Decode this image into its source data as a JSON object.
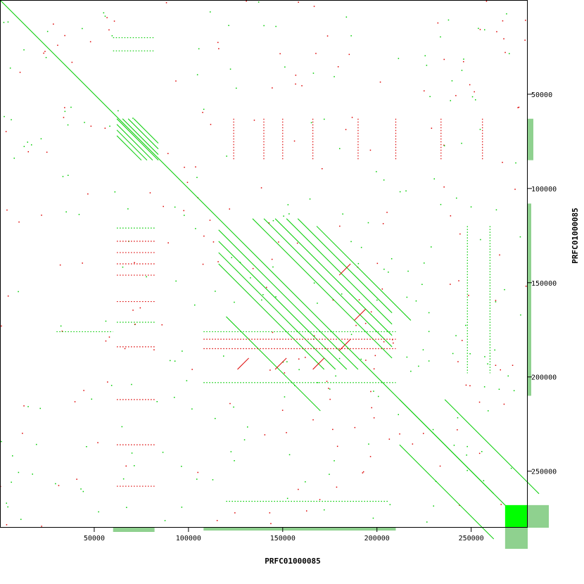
{
  "chart_data": {
    "type": "scatter",
    "subtype": "dot-plot self-alignment",
    "xlabel": "PRFC01000085",
    "ylabel": "PRFC01000085",
    "xlim": [
      0,
      280000
    ],
    "ylim": [
      0,
      280000
    ],
    "x_ticks": [
      {
        "value": 50000,
        "label": "50000"
      },
      {
        "value": 100000,
        "label": "100000"
      },
      {
        "value": 150000,
        "label": "150000"
      },
      {
        "value": 200000,
        "label": "200000"
      },
      {
        "value": 250000,
        "label": "250000"
      }
    ],
    "y_ticks": [
      {
        "value": 50000,
        "label": "50000"
      },
      {
        "value": 100000,
        "label": "100000"
      },
      {
        "value": 150000,
        "label": "150000"
      },
      {
        "value": 200000,
        "label": "200000"
      },
      {
        "value": 250000,
        "label": "250000"
      }
    ],
    "colors": {
      "forward": "#00cc00",
      "reverse": "#dd0000",
      "block": "#00ff00",
      "histogram": "#8fd18f",
      "axis": "#000000"
    },
    "main_diagonal": {
      "from": [
        0,
        0
      ],
      "to": [
        280000,
        280000
      ]
    },
    "dense_block": {
      "x": [
        268000,
        280000
      ],
      "y": [
        268000,
        280000
      ]
    },
    "forward_segments": [
      [
        [
          62000,
          63000
        ],
        [
          84000,
          85000
        ]
      ],
      [
        [
          65000,
          63000
        ],
        [
          84000,
          82000
        ]
      ],
      [
        [
          68000,
          63000
        ],
        [
          84000,
          79000
        ]
      ],
      [
        [
          71000,
          63000
        ],
        [
          84000,
          76000
        ]
      ],
      [
        [
          62000,
          66000
        ],
        [
          81000,
          85000
        ]
      ],
      [
        [
          62000,
          69000
        ],
        [
          78000,
          85000
        ]
      ],
      [
        [
          62000,
          72000
        ],
        [
          75000,
          85000
        ]
      ],
      [
        [
          134000,
          116000
        ],
        [
          208000,
          190000
        ]
      ],
      [
        [
          140000,
          116000
        ],
        [
          208000,
          184000
        ]
      ],
      [
        [
          146000,
          116000
        ],
        [
          208000,
          178000
        ]
      ],
      [
        [
          152000,
          116000
        ],
        [
          208000,
          172000
        ]
      ],
      [
        [
          158000,
          116000
        ],
        [
          208000,
          166000
        ]
      ],
      [
        [
          116000,
          122000
        ],
        [
          190000,
          196000
        ]
      ],
      [
        [
          116000,
          128000
        ],
        [
          184000,
          196000
        ]
      ],
      [
        [
          116000,
          134000
        ],
        [
          178000,
          196000
        ]
      ],
      [
        [
          116000,
          140000
        ],
        [
          172000,
          196000
        ]
      ],
      [
        [
          212000,
          212000
        ],
        [
          262000,
          262000
        ]
      ],
      [
        [
          236000,
          212000
        ],
        [
          286000,
          262000
        ]
      ],
      [
        [
          212000,
          236000
        ],
        [
          262000,
          286000
        ]
      ],
      [
        [
          120000,
          168000
        ],
        [
          170000,
          218000
        ]
      ],
      [
        [
          168000,
          120000
        ],
        [
          218000,
          170000
        ]
      ]
    ],
    "reverse_segments": [
      [
        [
          126000,
          196000
        ],
        [
          132000,
          190000
        ]
      ],
      [
        [
          146000,
          196000
        ],
        [
          152000,
          190000
        ]
      ],
      [
        [
          166000,
          196000
        ],
        [
          172000,
          190000
        ]
      ],
      [
        [
          180000,
          186000
        ],
        [
          186000,
          180000
        ]
      ],
      [
        [
          188000,
          170000
        ],
        [
          194000,
          164000
        ]
      ],
      [
        [
          180000,
          146000
        ],
        [
          186000,
          140000
        ]
      ]
    ],
    "forward_dotted": [
      [
        [
          60000,
          20000
        ],
        [
          82000,
          20000
        ]
      ],
      [
        [
          60000,
          27000
        ],
        [
          82000,
          27000
        ]
      ],
      [
        [
          62000,
          121000
        ],
        [
          82000,
          121000
        ]
      ],
      [
        [
          62000,
          171000
        ],
        [
          82000,
          171000
        ]
      ],
      [
        [
          108000,
          176000
        ],
        [
          210000,
          176000
        ]
      ],
      [
        [
          108000,
          203000
        ],
        [
          210000,
          203000
        ]
      ],
      [
        [
          30000,
          176000
        ],
        [
          60000,
          176000
        ]
      ],
      [
        [
          120000,
          266000
        ],
        [
          206000,
          266000
        ]
      ],
      [
        [
          260000,
          120000
        ],
        [
          260000,
          198000
        ]
      ],
      [
        [
          248000,
          120000
        ],
        [
          248000,
          198000
        ]
      ]
    ],
    "reverse_dotted": [
      [
        [
          62000,
          128000
        ],
        [
          82000,
          128000
        ]
      ],
      [
        [
          62000,
          134000
        ],
        [
          82000,
          134000
        ]
      ],
      [
        [
          62000,
          140000
        ],
        [
          82000,
          140000
        ]
      ],
      [
        [
          62000,
          146000
        ],
        [
          82000,
          146000
        ]
      ],
      [
        [
          62000,
          160000
        ],
        [
          82000,
          160000
        ]
      ],
      [
        [
          62000,
          184000
        ],
        [
          82000,
          184000
        ]
      ],
      [
        [
          62000,
          212000
        ],
        [
          82000,
          212000
        ]
      ],
      [
        [
          62000,
          236000
        ],
        [
          82000,
          236000
        ]
      ],
      [
        [
          62000,
          258000
        ],
        [
          82000,
          258000
        ]
      ],
      [
        [
          108000,
          180000
        ],
        [
          210000,
          180000
        ]
      ],
      [
        [
          108000,
          185000
        ],
        [
          210000,
          185000
        ]
      ],
      [
        [
          124000,
          63000
        ],
        [
          124000,
          85000
        ]
      ],
      [
        [
          140000,
          63000
        ],
        [
          140000,
          85000
        ]
      ],
      [
        [
          150000,
          63000
        ],
        [
          150000,
          85000
        ]
      ],
      [
        [
          166000,
          63000
        ],
        [
          166000,
          85000
        ]
      ],
      [
        [
          190000,
          63000
        ],
        [
          190000,
          85000
        ]
      ],
      [
        [
          210000,
          63000
        ],
        [
          210000,
          85000
        ]
      ],
      [
        [
          234000,
          63000
        ],
        [
          234000,
          85000
        ]
      ],
      [
        [
          256000,
          63000
        ],
        [
          256000,
          85000
        ]
      ]
    ]
  }
}
